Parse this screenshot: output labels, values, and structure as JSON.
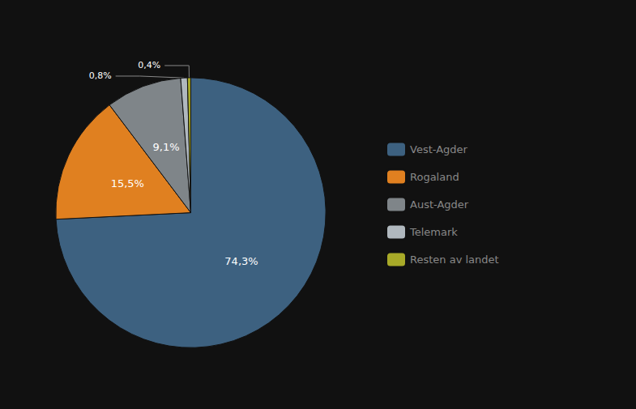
{
  "chart_data": {
    "type": "pie",
    "categories": [
      "Vest-Agder",
      "Rogaland",
      "Aust-Agder",
      "Telemark",
      "Resten av landet"
    ],
    "values": [
      74.3,
      15.5,
      9.1,
      0.8,
      0.4
    ],
    "value_labels": [
      "74,3%",
      "15,5%",
      "9,1%",
      "0,8%",
      "0,4%"
    ],
    "colors": [
      "#3d6180",
      "#e08020",
      "#7f8589",
      "#b0b8be",
      "#a8aa28"
    ],
    "data_labels": true,
    "legend": "right"
  }
}
